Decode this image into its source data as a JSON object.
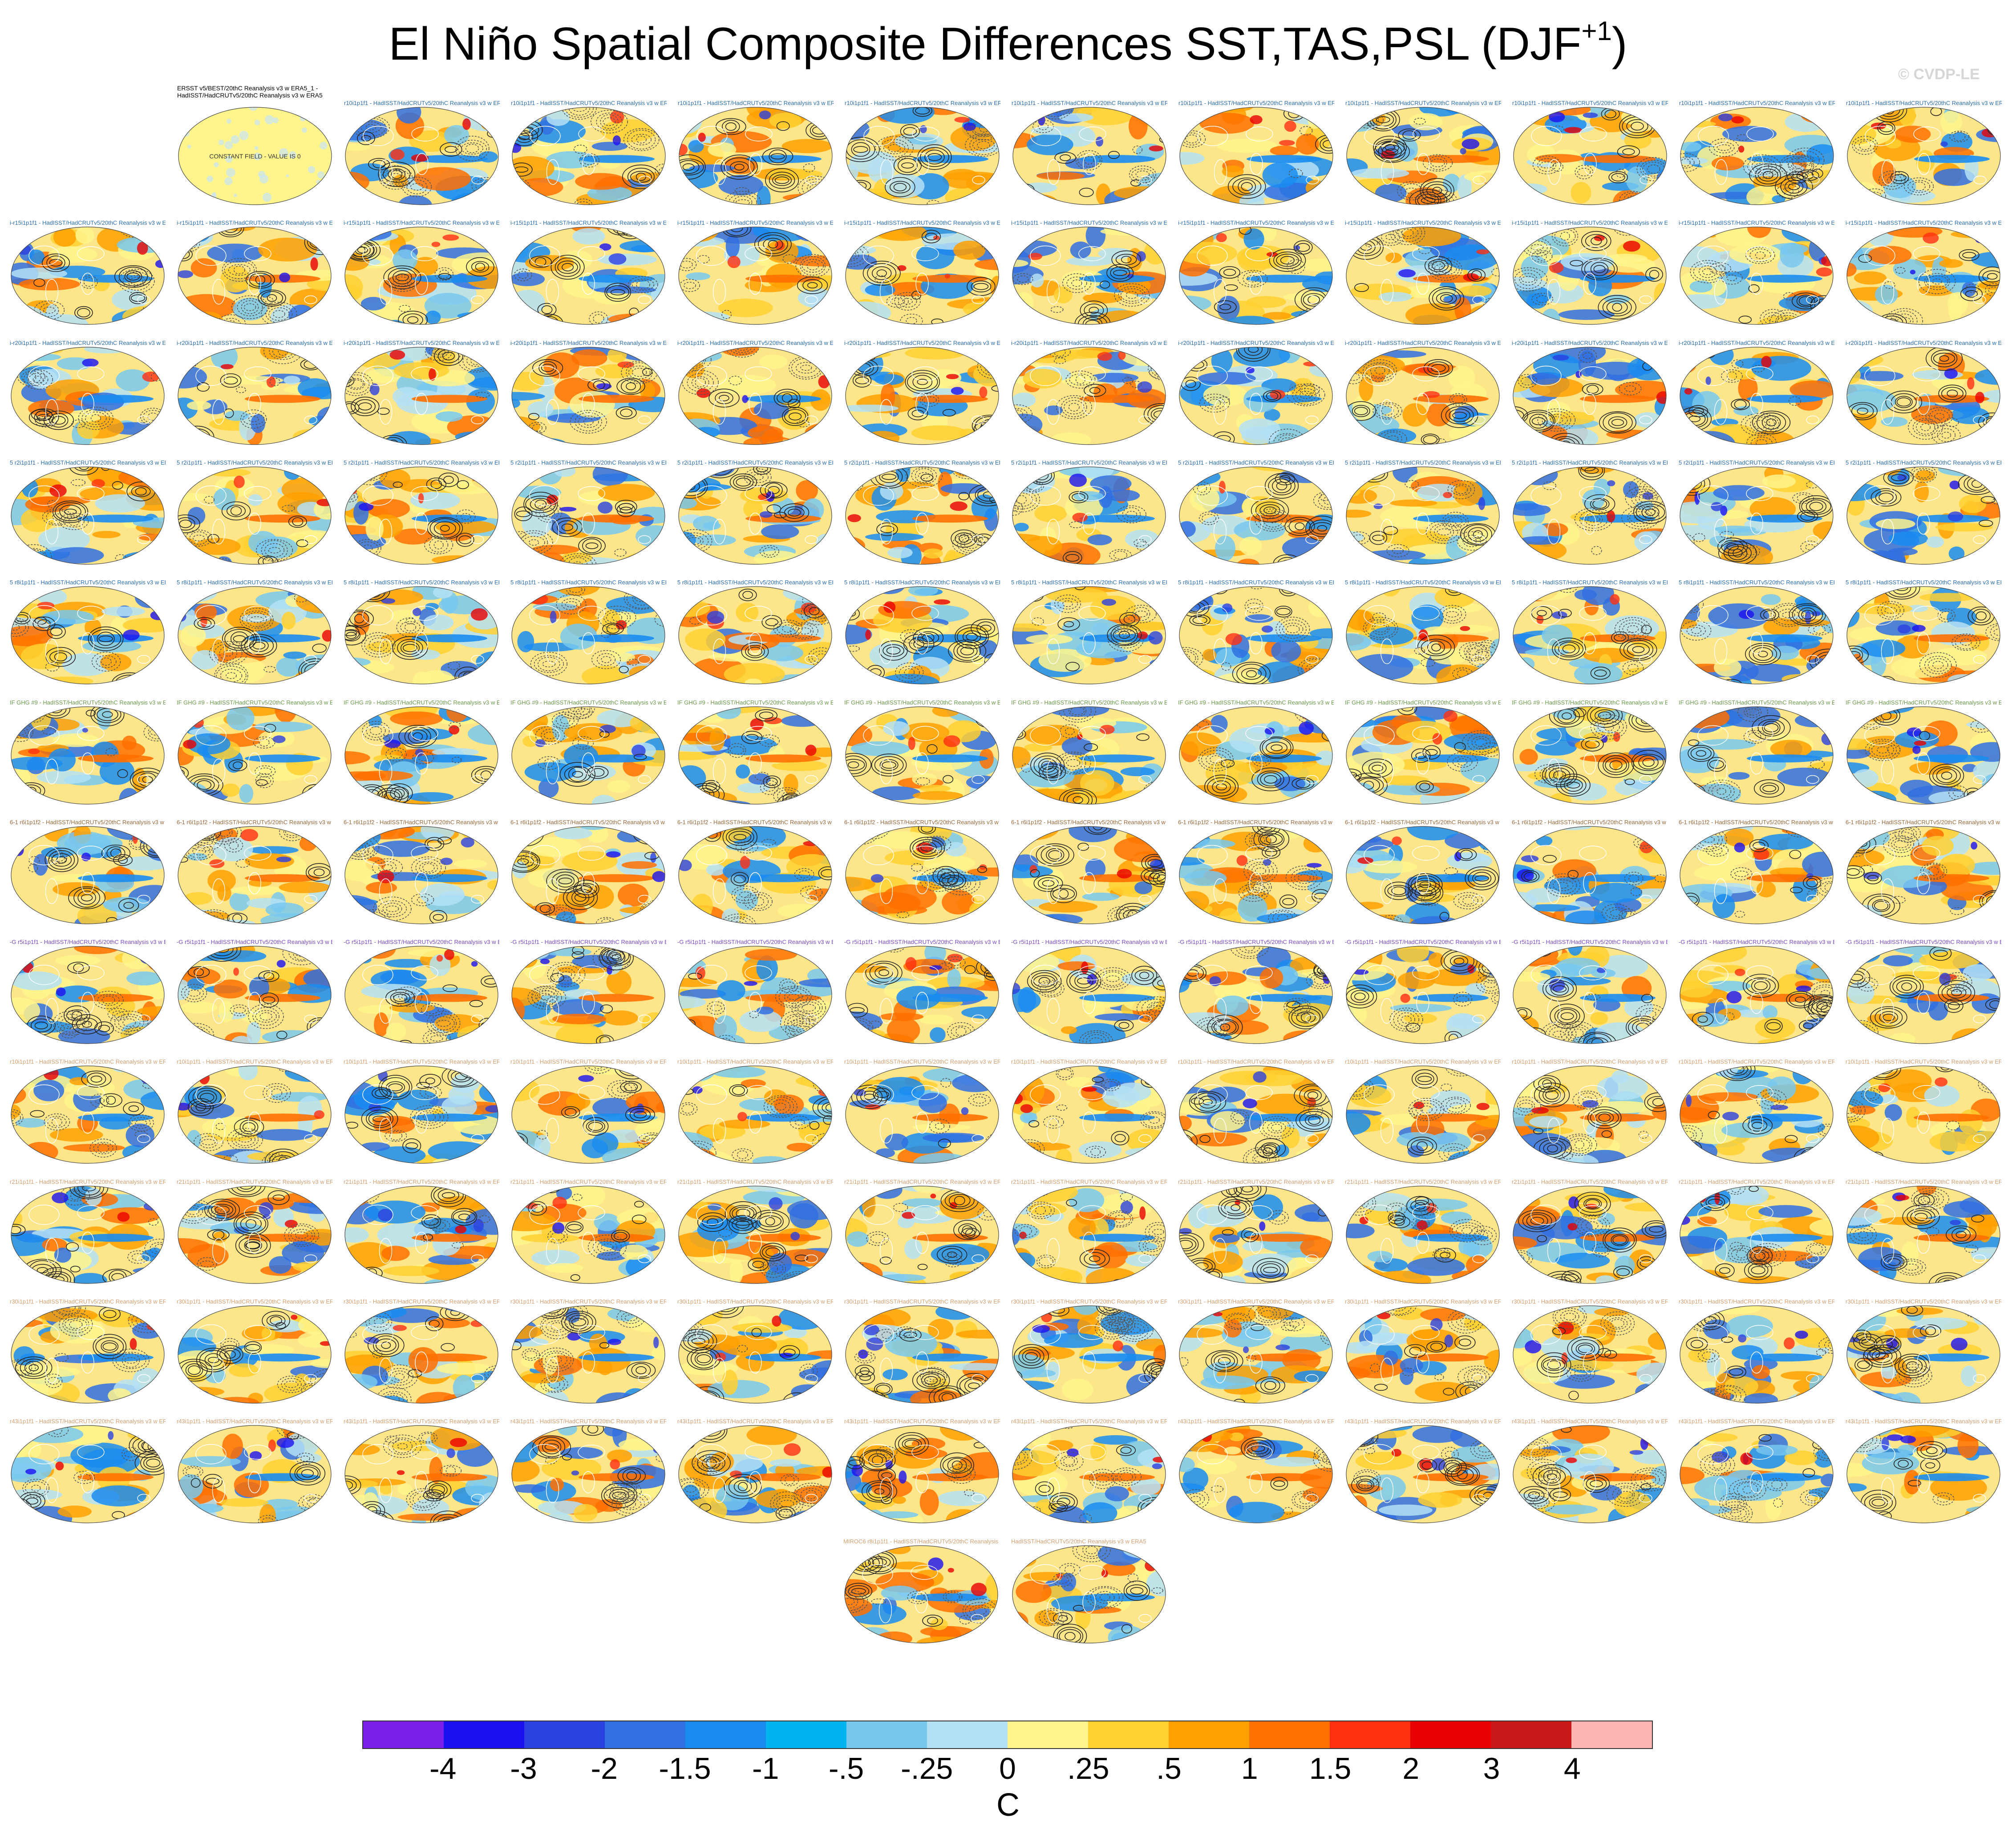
{
  "title": {
    "main": "El Niño Spatial Composite Differences SST,TAS,PSL (DJF",
    "sup": "+1",
    "close": ")"
  },
  "copyright": "© CVDP-LE",
  "first_panel": {
    "line1": "ERSST v5/BEST/20thC Reanalysis v3 w ERA5_1 -",
    "line2": "HadISST/HadCRUTv5/20thC Reanalysis v3 w ERA5",
    "note": "CONSTANT FIELD - VALUE IS 0"
  },
  "panel_titles": {
    "default": "HadISST/HadCRUTv5/20thC Reanalysis v3 w ERA5",
    "row_prefixes": [
      "r10i1p1f1 -",
      "i-r15i1p1f1 -",
      "i-r20i1p1f1 -",
      "5 r2i1p1f1 -",
      "5 r8i1p1f1 -",
      "IF GHG #9 -",
      "6-1 r6i1p1f2 -",
      "-G r5i1p1f1 -",
      "r10i1p1f1 -",
      "r21i1p1f1 -",
      "r30i1p1f1 -",
      "r43i1p1f1 -",
      "MIROC6 r8i1p1f1 -"
    ],
    "row_colors": [
      "#2b6fb0",
      "#2b6fb0",
      "#2b6fb0",
      "#2b6fb0",
      "#2b6fb0",
      "#6a9a4a",
      "#9a6a3a",
      "#7a4ac0",
      "#d4a070",
      "#d4a070",
      "#d4a070",
      "#d4a070",
      "#d4a070"
    ]
  },
  "colorbar": {
    "colors": [
      "#7b1ee8",
      "#1a10f0",
      "#2a40e0",
      "#3070e0",
      "#1a8cf0",
      "#00b4f0",
      "#78c8ee",
      "#b4e0f4",
      "#fff58c",
      "#ffd030",
      "#ffa000",
      "#ff7000",
      "#ff3010",
      "#e80000",
      "#c81818",
      "#ffb4b4"
    ],
    "labels": [
      "-4",
      "-3",
      "-2",
      "-1.5",
      "-1",
      "-.5",
      "-.25",
      "0",
      ".25",
      ".5",
      "1",
      "1.5",
      "2",
      "3",
      "4"
    ],
    "units": "C"
  }
}
